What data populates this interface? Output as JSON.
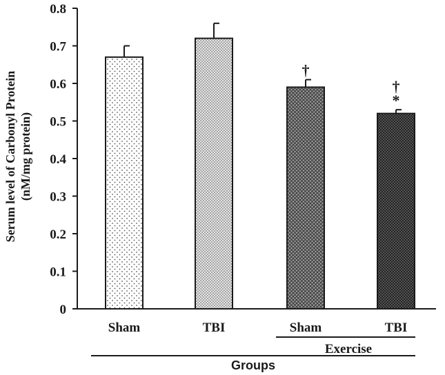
{
  "chart_data": {
    "type": "bar",
    "title": "",
    "ylabel_line1": "Serum level of Carbonyl Protein",
    "ylabel_line2": "(nM/mg protein)",
    "xlabel": "Groups",
    "subgroup_label": "Exercise",
    "ylim": [
      0,
      0.8
    ],
    "yticks": [
      0,
      0.1,
      0.2,
      0.3,
      0.4,
      0.5,
      0.6,
      0.7,
      0.8
    ],
    "ytick_labels": [
      "0",
      "0.1",
      "0.2",
      "0.3",
      "0.4",
      "0.5",
      "0.6",
      "0.7",
      "0.8"
    ],
    "categories": [
      "Sham",
      "TBI",
      "Sham",
      "TBI"
    ],
    "values": [
      0.67,
      0.72,
      0.59,
      0.52
    ],
    "errors": [
      0.03,
      0.04,
      0.02,
      0.01
    ],
    "patterns": [
      "sparse-dots",
      "dense-dots",
      "crosshatch",
      "dense-crosshatch"
    ],
    "annotations": [
      {
        "bar": 2,
        "text": "†"
      },
      {
        "bar": 3,
        "text": "†"
      },
      {
        "bar": 3,
        "text": "*"
      }
    ],
    "grid": false,
    "legend": "none"
  }
}
